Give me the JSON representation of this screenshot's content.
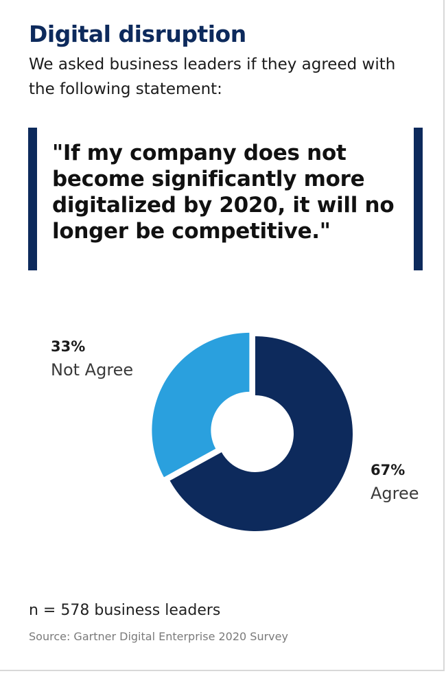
{
  "header": {
    "title": "Digital disruption",
    "subtitle": "We asked business leaders if they agreed with the following statement:"
  },
  "quote": "\"If my company does not become significantly more digitalized by 2020, it will no longer be competitive.\"",
  "colors": {
    "agree": "#0d2a5c",
    "not_agree": "#2aa0de",
    "accent_bar": "#0d2a5c"
  },
  "chart_data": {
    "type": "pie",
    "style": "donut",
    "title": "",
    "slices": [
      {
        "label": "Agree",
        "value": 67,
        "value_label": "67%",
        "color": "#0d2a5c"
      },
      {
        "label": "Not Agree",
        "value": 33,
        "value_label": "33%",
        "color": "#2aa0de"
      }
    ],
    "legend": "none"
  },
  "footer": {
    "sample": "n = 578 business leaders",
    "source": "Source: Gartner Digital Enterprise 2020 Survey"
  }
}
